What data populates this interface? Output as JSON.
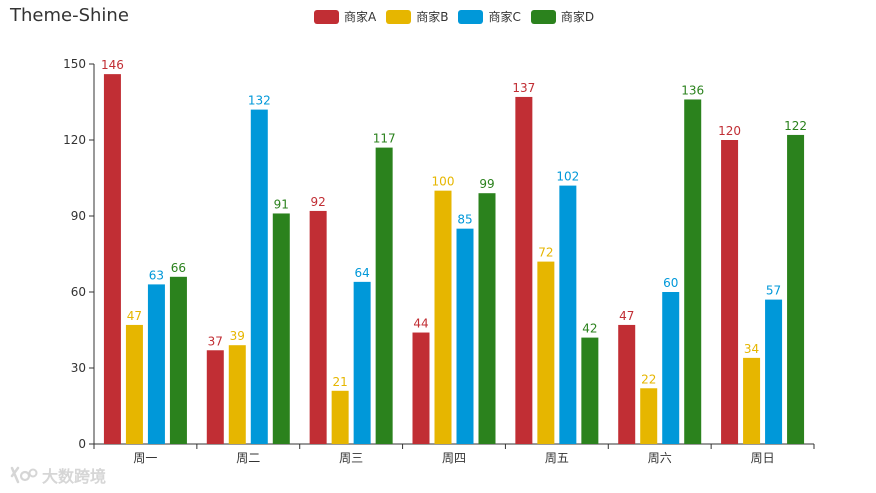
{
  "chart_data": {
    "type": "bar",
    "title": "Theme-Shine",
    "categories": [
      "周一",
      "周二",
      "周三",
      "周四",
      "周五",
      "周六",
      "周日"
    ],
    "series": [
      {
        "name": "商家A",
        "color": "#c12e34",
        "values": [
          146,
          37,
          92,
          44,
          137,
          47,
          120
        ]
      },
      {
        "name": "商家B",
        "color": "#e6b600",
        "values": [
          47,
          39,
          21,
          100,
          72,
          22,
          34
        ]
      },
      {
        "name": "商家C",
        "color": "#0098d9",
        "values": [
          63,
          132,
          64,
          85,
          102,
          60,
          57
        ]
      },
      {
        "name": "商家D",
        "color": "#2b821d",
        "values": [
          66,
          91,
          117,
          99,
          42,
          136,
          122
        ]
      }
    ],
    "ylim": [
      0,
      150
    ],
    "yticks": [
      0,
      30,
      60,
      90,
      120,
      150
    ],
    "grid": false,
    "legend_position": "top-center",
    "data_labels": true
  },
  "watermark": {
    "text": "大数跨境",
    "logo": "kiwi-logo-icon"
  }
}
